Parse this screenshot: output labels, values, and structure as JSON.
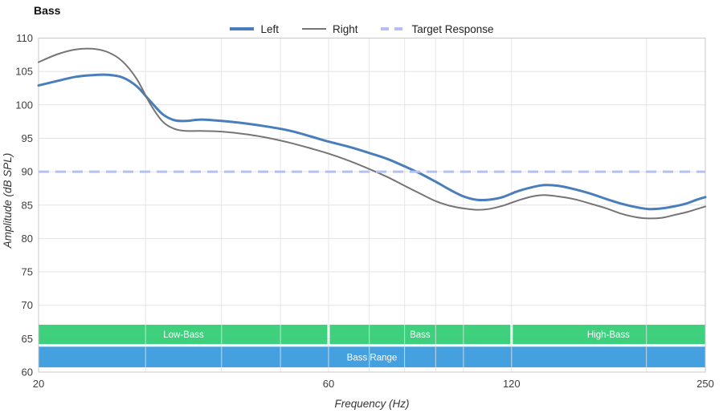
{
  "title": "Bass",
  "legend": [
    {
      "label": "Left",
      "color": "#4a7eba",
      "dashed": false,
      "thickness": 4
    },
    {
      "label": "Right",
      "color": "#757575",
      "dashed": false,
      "thickness": 2
    },
    {
      "label": "Target Response",
      "color": "#b4c0f2",
      "dashed": true,
      "thickness": 4
    }
  ],
  "chart_data": {
    "type": "line",
    "title": "Bass",
    "xlabel": "Frequency (Hz)",
    "ylabel": "Amplitude (dB SPL)",
    "x_scale": "log",
    "xlim": [
      20,
      250
    ],
    "ylim": [
      60,
      110
    ],
    "x_ticks": [
      20,
      60,
      120,
      250
    ],
    "x_gridlines": [
      30,
      40,
      50,
      60,
      70,
      80,
      90,
      100,
      120,
      200
    ],
    "y_ticks": [
      60,
      65,
      70,
      75,
      80,
      85,
      90,
      95,
      100,
      105,
      110
    ],
    "grid": true,
    "legend_position": "top-center",
    "colors": {
      "left": "#4a7eba",
      "right": "#757575",
      "target": "#b4c0f2",
      "grid": "#e3e3e3",
      "border": "#c8c8c8",
      "tick_text": "#3d3d3d",
      "band_green": "#2ecc71",
      "band_blue": "#3498db",
      "band_text": "#ffffff"
    },
    "series": [
      {
        "name": "Left",
        "color": "#4a7eba",
        "width": 3,
        "dashed": false,
        "points": [
          [
            20,
            102.9
          ],
          [
            21.5,
            103.6
          ],
          [
            23,
            104.2
          ],
          [
            24.5,
            104.45
          ],
          [
            26,
            104.5
          ],
          [
            27.5,
            104.1
          ],
          [
            29,
            102.8
          ],
          [
            30.5,
            100.6
          ],
          [
            32,
            98.6
          ],
          [
            33.5,
            97.7
          ],
          [
            35,
            97.6
          ],
          [
            37,
            97.8
          ],
          [
            40,
            97.6
          ],
          [
            44,
            97.2
          ],
          [
            48,
            96.7
          ],
          [
            52,
            96.1
          ],
          [
            56,
            95.3
          ],
          [
            60,
            94.5
          ],
          [
            65,
            93.7
          ],
          [
            70,
            92.8
          ],
          [
            75,
            91.9
          ],
          [
            80,
            90.8
          ],
          [
            85,
            89.7
          ],
          [
            90,
            88.5
          ],
          [
            95,
            87.3
          ],
          [
            100,
            86.3
          ],
          [
            105,
            85.8
          ],
          [
            110,
            85.8
          ],
          [
            116,
            86.2
          ],
          [
            123,
            87.1
          ],
          [
            130,
            87.7
          ],
          [
            136,
            88.0
          ],
          [
            143,
            87.9
          ],
          [
            152,
            87.4
          ],
          [
            162,
            86.7
          ],
          [
            172,
            85.9
          ],
          [
            182,
            85.2
          ],
          [
            192,
            84.7
          ],
          [
            202,
            84.4
          ],
          [
            212,
            84.5
          ],
          [
            222,
            84.8
          ],
          [
            232,
            85.2
          ],
          [
            242,
            85.8
          ],
          [
            250,
            86.2
          ]
        ]
      },
      {
        "name": "Right",
        "color": "#757575",
        "width": 2,
        "dashed": false,
        "points": [
          [
            20,
            106.4
          ],
          [
            21.5,
            107.6
          ],
          [
            23,
            108.3
          ],
          [
            24.5,
            108.4
          ],
          [
            26,
            107.9
          ],
          [
            27.5,
            106.5
          ],
          [
            29,
            103.9
          ],
          [
            30.5,
            100.2
          ],
          [
            32,
            97.5
          ],
          [
            33.5,
            96.4
          ],
          [
            35,
            96.1
          ],
          [
            37,
            96.1
          ],
          [
            40,
            96.0
          ],
          [
            44,
            95.6
          ],
          [
            48,
            95.0
          ],
          [
            52,
            94.3
          ],
          [
            56,
            93.5
          ],
          [
            60,
            92.7
          ],
          [
            65,
            91.6
          ],
          [
            70,
            90.4
          ],
          [
            75,
            89.2
          ],
          [
            80,
            87.9
          ],
          [
            85,
            86.7
          ],
          [
            90,
            85.6
          ],
          [
            95,
            84.9
          ],
          [
            100,
            84.5
          ],
          [
            105,
            84.3
          ],
          [
            110,
            84.4
          ],
          [
            116,
            84.9
          ],
          [
            123,
            85.7
          ],
          [
            130,
            86.3
          ],
          [
            136,
            86.5
          ],
          [
            143,
            86.3
          ],
          [
            152,
            85.9
          ],
          [
            162,
            85.2
          ],
          [
            172,
            84.5
          ],
          [
            182,
            83.7
          ],
          [
            192,
            83.2
          ],
          [
            202,
            83.0
          ],
          [
            212,
            83.1
          ],
          [
            222,
            83.5
          ],
          [
            232,
            83.9
          ],
          [
            242,
            84.4
          ],
          [
            250,
            84.8
          ]
        ]
      },
      {
        "name": "Target Response",
        "color": "#b4c0f2",
        "width": 3,
        "dashed": true,
        "hline": 90
      }
    ],
    "bands": [
      {
        "label": "Low-Bass",
        "x_from": 20,
        "x_to": 60,
        "y_from": 64.2,
        "y_to": 67.1,
        "color": "#2ecc71"
      },
      {
        "label": "Bass",
        "x_from": 60,
        "x_to": 120,
        "y_from": 64.2,
        "y_to": 67.1,
        "color": "#2ecc71"
      },
      {
        "label": "High-Bass",
        "x_from": 120,
        "x_to": 250,
        "y_from": 64.2,
        "y_to": 67.1,
        "color": "#2ecc71"
      },
      {
        "label": "Bass Range",
        "x_from": 20,
        "x_to": 250,
        "y_from": 60.7,
        "y_to": 63.8,
        "color": "#3498db"
      }
    ]
  }
}
